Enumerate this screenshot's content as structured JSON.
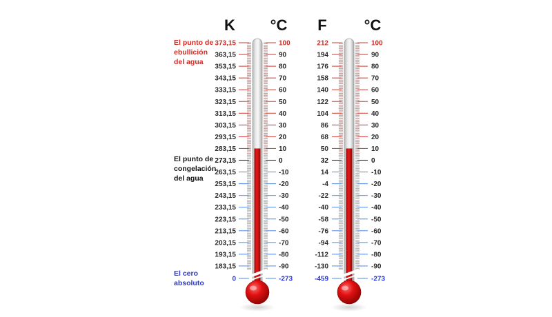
{
  "colors": {
    "boiling": "#d42a22",
    "freezing": "#111111",
    "absolute_zero": "#2b39d6",
    "normal_label": "#2a2a2a",
    "tick_red": "#d24a42",
    "tick_dark": "#333333",
    "tick_blue": "#5d93e6",
    "mercury": "#cc0d0d",
    "bulb": "#dd1111"
  },
  "annotations": {
    "boiling": [
      "El punto de",
      "ebullición",
      "del agua"
    ],
    "freezing": [
      "El punto de",
      "congelación",
      "del agua"
    ],
    "absolute_zero": [
      "El cero",
      "absoluto"
    ]
  },
  "thermometers": [
    {
      "id": "kelvin-celsius",
      "left_unit": "K",
      "right_unit": "°C",
      "mercury_reading_celsius": 10,
      "left_labels": [
        "373,15",
        "363,15",
        "353,15",
        "343,15",
        "333,15",
        "323,15",
        "313,15",
        "303,15",
        "293,15",
        "283,15",
        "273,15",
        "263,15",
        "253,15",
        "243,15",
        "233,15",
        "223,15",
        "213,15",
        "203,15",
        "193,15",
        "183,15",
        "0"
      ],
      "right_labels": [
        "100",
        "90",
        "80",
        "70",
        "60",
        "50",
        "40",
        "30",
        "20",
        "10",
        "0",
        "-10",
        "-20",
        "-30",
        "-40",
        "-50",
        "-60",
        "-70",
        "-80",
        "-90",
        "-273"
      ]
    },
    {
      "id": "fahrenheit-celsius",
      "left_unit": "F",
      "right_unit": "°C",
      "mercury_reading_celsius": 10,
      "left_labels": [
        "212",
        "194",
        "176",
        "158",
        "140",
        "122",
        "104",
        "86",
        "68",
        "50",
        "32",
        "14",
        "-4",
        "-22",
        "-40",
        "-58",
        "-76",
        "-94",
        "-112",
        "-130",
        "-459"
      ],
      "right_labels": [
        "100",
        "90",
        "80",
        "70",
        "60",
        "50",
        "40",
        "30",
        "20",
        "10",
        "0",
        "-10",
        "-20",
        "-30",
        "-40",
        "-50",
        "-60",
        "-70",
        "-80",
        "-90",
        "-273"
      ]
    }
  ]
}
